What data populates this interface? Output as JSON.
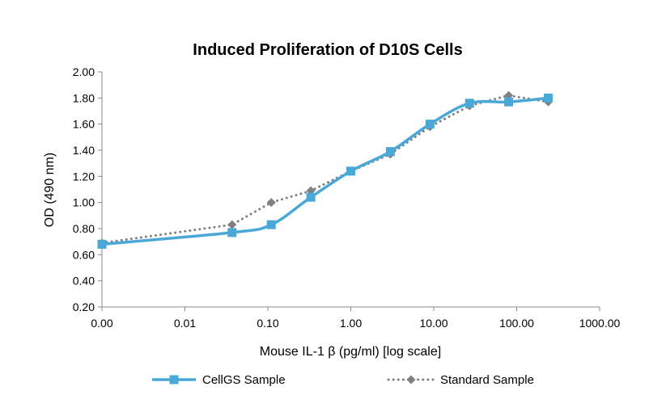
{
  "chart_data": {
    "type": "line",
    "title": "Induced Proliferation of D10S Cells",
    "xlabel": "Mouse IL-1 β (pg/ml) [log scale]",
    "ylabel": "OD (490 nm)",
    "x_scale": "log",
    "x_tick_labels": [
      "0.00",
      "0.01",
      "0.10",
      "1.00",
      "10.00",
      "100.00",
      "1000.00"
    ],
    "x_tick_values": [
      0.001,
      0.01,
      0.1,
      1,
      10,
      100,
      1000
    ],
    "xlim": [
      0.001,
      1000
    ],
    "y_tick_labels": [
      "0.20",
      "0.40",
      "0.60",
      "0.80",
      "1.00",
      "1.20",
      "1.40",
      "1.60",
      "1.80",
      "2.00"
    ],
    "ylim": [
      0.2,
      2.0
    ],
    "grid": false,
    "legend_position": "bottom",
    "series": [
      {
        "name": "CellGS Sample",
        "color": "#4aa8d8",
        "style": "solid-smooth",
        "marker": "square",
        "x": [
          0.001,
          0.037,
          0.11,
          0.33,
          1.0,
          3.0,
          9.0,
          27,
          80,
          240
        ],
        "y": [
          0.68,
          0.77,
          0.83,
          1.04,
          1.24,
          1.39,
          1.6,
          1.76,
          1.77,
          1.8
        ]
      },
      {
        "name": "Standard Sample",
        "color": "#808080",
        "style": "dotted",
        "marker": "diamond",
        "x": [
          0.001,
          0.037,
          0.11,
          0.33,
          1.0,
          3.0,
          9.0,
          27,
          80,
          240
        ],
        "y": [
          0.69,
          0.83,
          1.0,
          1.09,
          1.24,
          1.37,
          1.58,
          1.74,
          1.82,
          1.77
        ]
      }
    ]
  }
}
